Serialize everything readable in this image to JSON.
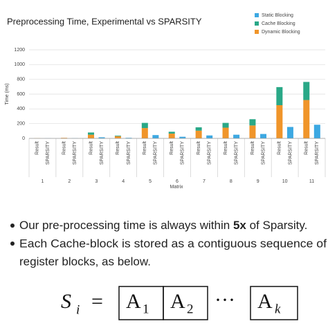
{
  "chart_data": {
    "type": "bar",
    "title": "Preprocessing Time, Experimental vs SPARSITY",
    "y_label": "Time (ms)",
    "x_label": "Matrix",
    "groups": [
      "1",
      "2",
      "3",
      "4",
      "5",
      "6",
      "7",
      "8",
      "9",
      "10",
      "11"
    ],
    "categories": [
      "Result",
      "SPARSITY",
      "Result",
      "SPARSITY",
      "Result",
      "SPARSITY",
      "Result",
      "SPARSITY",
      "Result",
      "SPARSITY",
      "Result",
      "SPARSITY",
      "Result",
      "SPARSITY",
      "Result",
      "SPARSITY",
      "Result",
      "SPARSITY",
      "Result",
      "SPARSITY",
      "Result",
      "SPARSITY"
    ],
    "series": [
      {
        "name": "Dynamic Blocking",
        "color": "#f0952a",
        "values": [
          3,
          null,
          8,
          null,
          50,
          null,
          30,
          null,
          140,
          null,
          65,
          null,
          105,
          null,
          145,
          null,
          175,
          null,
          450,
          null,
          520,
          null
        ]
      },
      {
        "name": "Cache Blocking",
        "color": "#2aa887",
        "values": [
          0,
          null,
          0,
          null,
          30,
          null,
          8,
          null,
          70,
          null,
          25,
          null,
          45,
          null,
          65,
          null,
          85,
          null,
          245,
          null,
          245,
          null
        ]
      },
      {
        "name": "Static Blocking",
        "color": "#3ca8e2",
        "values": [
          null,
          2,
          null,
          3,
          null,
          15,
          null,
          8,
          null,
          45,
          null,
          22,
          null,
          40,
          null,
          50,
          null,
          60,
          null,
          155,
          null,
          185
        ]
      }
    ],
    "ylim": [
      0,
      1200
    ],
    "yticks": [
      0,
      200,
      400,
      600,
      800,
      1000,
      1200
    ],
    "grid": true,
    "stacked": true
  },
  "bullets": [
    {
      "text": "Our pre-processing time is always within ",
      "bold": "5x",
      "rest": " of Sparsity."
    },
    {
      "lines": [
        "Each Cache-block is stored as a contiguous sequence of",
        "register blocks, as below."
      ]
    }
  ],
  "formula": {
    "lhs": "S",
    "lhs_sub": "i",
    "eq": "=",
    "dots": "···",
    "blocks": [
      {
        "base": "A",
        "sub": "1"
      },
      {
        "base": "A",
        "sub": "2"
      },
      {
        "base": "A",
        "sub": "k"
      }
    ]
  }
}
